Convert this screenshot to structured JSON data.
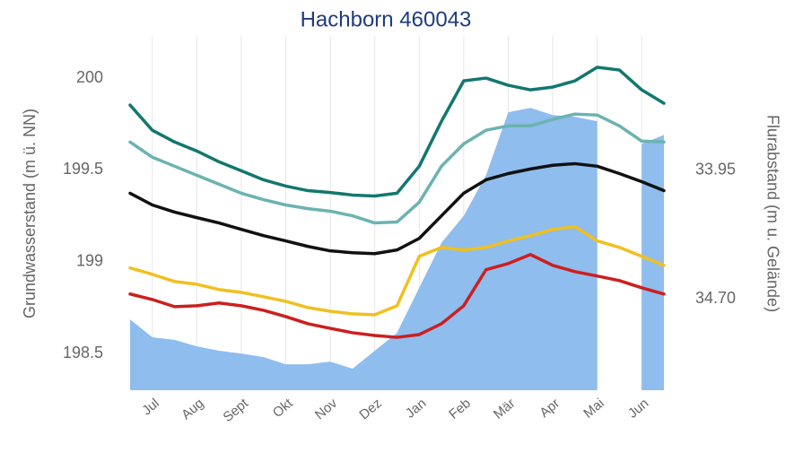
{
  "chart_data": {
    "type": "line",
    "title": "Hachborn 460043",
    "y_label": "Grundwasserstand (m ü. NN)",
    "y2_label": "Flurabstand (m u. Gelände)",
    "categories": [
      null,
      "Jul",
      null,
      "Aug",
      null,
      "Sept",
      null,
      "Okt",
      null,
      "Nov",
      null,
      "Dez",
      null,
      "Jan",
      null,
      "Feb",
      null,
      "Mär",
      null,
      "Apr",
      null,
      "Mai",
      null,
      "Jun",
      null
    ],
    "ylim": [
      198.3,
      200.23
    ],
    "yticks": [
      198.5,
      199,
      199.5,
      200
    ],
    "y2lim": [
      35.23,
      33.17
    ],
    "y2ticks": [
      33.95,
      {
        "value": 34.7,
        "label": "34.70"
      }
    ],
    "grid": true,
    "series": [
      {
        "type": "area",
        "color": "#8fbdee",
        "values": [
          198.686,
          198.588,
          198.574,
          198.539,
          198.515,
          198.5,
          198.48,
          198.441,
          198.441,
          198.456,
          198.417,
          198.515,
          198.613,
          198.858,
          199.103,
          199.25,
          199.471,
          199.814,
          199.838,
          199.799,
          199.789,
          199.765,
          null,
          199.642,
          199.691
        ]
      },
      {
        "type": "line",
        "color": "#13776f",
        "values": [
          199.853,
          199.716,
          199.652,
          199.603,
          199.544,
          199.495,
          199.446,
          199.412,
          199.387,
          199.377,
          199.363,
          199.358,
          199.373,
          199.52,
          199.765,
          199.985,
          200.0,
          199.961,
          199.936,
          199.951,
          199.985,
          200.059,
          200.044,
          199.936,
          199.863
        ]
      },
      {
        "type": "line",
        "color": "#6bb3b0",
        "values": [
          199.652,
          199.569,
          199.52,
          199.471,
          199.422,
          199.373,
          199.338,
          199.309,
          199.289,
          199.275,
          199.25,
          199.211,
          199.216,
          199.324,
          199.52,
          199.642,
          199.716,
          199.74,
          199.74,
          199.775,
          199.804,
          199.799,
          199.74,
          199.657,
          199.652
        ]
      },
      {
        "type": "line",
        "color": "#111111",
        "values": [
          199.373,
          199.309,
          199.27,
          199.24,
          199.211,
          199.176,
          199.142,
          199.113,
          199.083,
          199.059,
          199.049,
          199.044,
          199.064,
          199.127,
          199.25,
          199.373,
          199.446,
          199.48,
          199.505,
          199.525,
          199.534,
          199.52,
          199.48,
          199.436,
          199.387
        ]
      },
      {
        "type": "line",
        "color": "#f0c020",
        "values": [
          198.966,
          198.931,
          198.892,
          198.877,
          198.848,
          198.833,
          198.809,
          198.784,
          198.75,
          198.73,
          198.716,
          198.711,
          198.76,
          199.029,
          199.078,
          199.064,
          199.078,
          199.113,
          199.142,
          199.176,
          199.191,
          199.113,
          199.078,
          199.029,
          198.98
        ]
      },
      {
        "type": "line",
        "color": "#cc1f1f",
        "values": [
          198.824,
          198.794,
          198.755,
          198.76,
          198.775,
          198.76,
          198.735,
          198.701,
          198.662,
          198.637,
          198.613,
          198.598,
          198.588,
          198.603,
          198.662,
          198.76,
          198.956,
          198.99,
          199.039,
          198.98,
          198.946,
          198.922,
          198.897,
          198.858,
          198.824
        ]
      }
    ]
  }
}
